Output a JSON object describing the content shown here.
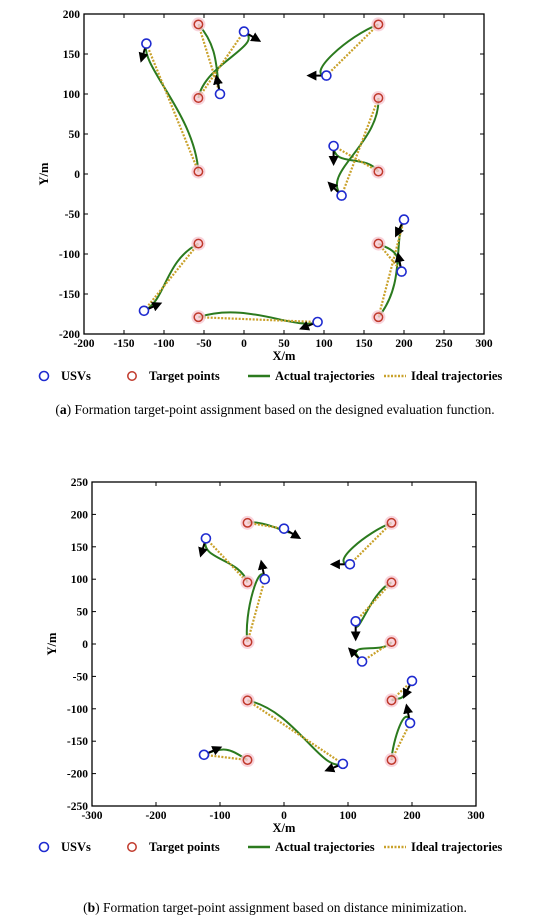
{
  "colors": {
    "usv": "#1f2bd0",
    "target": "#c0392b",
    "target_halo": "#f6c9d3",
    "actual": "#2b7a1e",
    "ideal": "#c9a12a",
    "arrow": "#000000"
  },
  "chart_data": [
    {
      "type": "scatter",
      "id": "a",
      "xlabel": "X/m",
      "ylabel": "Y/m",
      "xlim": [
        -200,
        300
      ],
      "ylim": [
        -200,
        200
      ],
      "xticks": [
        -200,
        -150,
        -100,
        -50,
        0,
        50,
        100,
        150,
        200,
        250,
        300
      ],
      "yticks": [
        -200,
        -150,
        -100,
        -50,
        0,
        50,
        100,
        150,
        200
      ],
      "legend": [
        "USVs",
        "Target points",
        "Actual trajectories",
        "Ideal trajectories"
      ],
      "caption_label": "a",
      "caption_text": " Formation target-point assignment based on the designed evaluation function.",
      "usvs": [
        [
          -122,
          163
        ],
        [
          0,
          178
        ],
        [
          103,
          123
        ],
        [
          -30,
          100
        ],
        [
          112,
          35
        ],
        [
          122,
          -27
        ],
        [
          200,
          -57
        ],
        [
          197,
          -122
        ],
        [
          -125,
          -171
        ],
        [
          92,
          -185
        ]
      ],
      "targets": [
        [
          -57,
          187
        ],
        [
          168,
          187
        ],
        [
          -57,
          95
        ],
        [
          168,
          95
        ],
        [
          -57,
          3
        ],
        [
          168,
          3
        ],
        [
          -57,
          -87
        ],
        [
          168,
          -87
        ],
        [
          -57,
          -179
        ],
        [
          168,
          -179
        ]
      ],
      "headings": [
        [
          -0.3,
          -1
        ],
        [
          1,
          -0.6
        ],
        [
          -1,
          0
        ],
        [
          -0.2,
          1
        ],
        [
          0,
          -1
        ],
        [
          -1,
          1
        ],
        [
          -0.5,
          -1
        ],
        [
          -0.2,
          1
        ],
        [
          1,
          0.45
        ],
        [
          -1,
          -0.4
        ]
      ],
      "assignments": [
        [
          0,
          4
        ],
        [
          1,
          2
        ],
        [
          2,
          1
        ],
        [
          3,
          0
        ],
        [
          4,
          5
        ],
        [
          5,
          3
        ],
        [
          6,
          9
        ],
        [
          7,
          7
        ],
        [
          8,
          6
        ],
        [
          9,
          8
        ]
      ]
    },
    {
      "type": "scatter",
      "id": "b",
      "xlabel": "X/m",
      "ylabel": "Y/m",
      "xlim": [
        -300,
        300
      ],
      "ylim": [
        -250,
        250
      ],
      "xticks": [
        -300,
        -200,
        -100,
        0,
        100,
        200,
        300
      ],
      "yticks": [
        -250,
        -200,
        -150,
        -100,
        -50,
        0,
        50,
        100,
        150,
        200,
        250
      ],
      "legend": [
        "USVs",
        "Target points",
        "Actual trajectories",
        "Ideal trajectories"
      ],
      "caption_label": "b",
      "caption_text": " Formation target-point assignment based on distance minimization.",
      "usvs": [
        [
          -122,
          163
        ],
        [
          0,
          178
        ],
        [
          103,
          123
        ],
        [
          -30,
          100
        ],
        [
          112,
          35
        ],
        [
          122,
          -27
        ],
        [
          200,
          -57
        ],
        [
          197,
          -122
        ],
        [
          -125,
          -171
        ],
        [
          92,
          -185
        ]
      ],
      "targets": [
        [
          -57,
          187
        ],
        [
          168,
          187
        ],
        [
          -57,
          95
        ],
        [
          168,
          95
        ],
        [
          -57,
          3
        ],
        [
          168,
          3
        ],
        [
          -57,
          -87
        ],
        [
          168,
          -87
        ],
        [
          -57,
          -179
        ],
        [
          168,
          -179
        ]
      ],
      "headings": [
        [
          -0.3,
          -1
        ],
        [
          1,
          -0.6
        ],
        [
          -1,
          0
        ],
        [
          -0.2,
          1
        ],
        [
          0,
          -1
        ],
        [
          -1,
          1
        ],
        [
          -0.5,
          -1
        ],
        [
          -0.2,
          1
        ],
        [
          1,
          0.45
        ],
        [
          -1,
          -0.4
        ]
      ],
      "assignments": [
        [
          0,
          2
        ],
        [
          1,
          0
        ],
        [
          2,
          1
        ],
        [
          3,
          4
        ],
        [
          4,
          3
        ],
        [
          5,
          5
        ],
        [
          6,
          7
        ],
        [
          7,
          9
        ],
        [
          8,
          8
        ],
        [
          9,
          6
        ]
      ]
    }
  ]
}
